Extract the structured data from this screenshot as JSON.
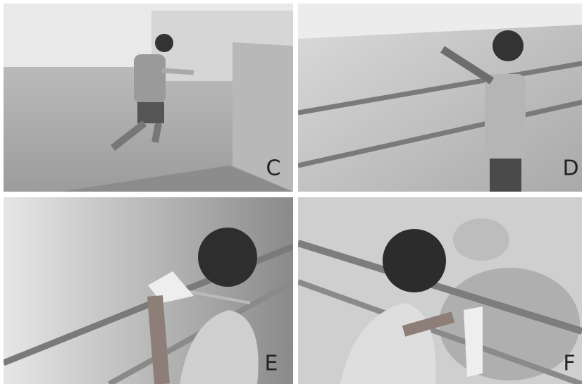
{
  "panels": [
    {
      "label": "C"
    },
    {
      "label": "D"
    },
    {
      "label": "E"
    },
    {
      "label": "F"
    }
  ]
}
